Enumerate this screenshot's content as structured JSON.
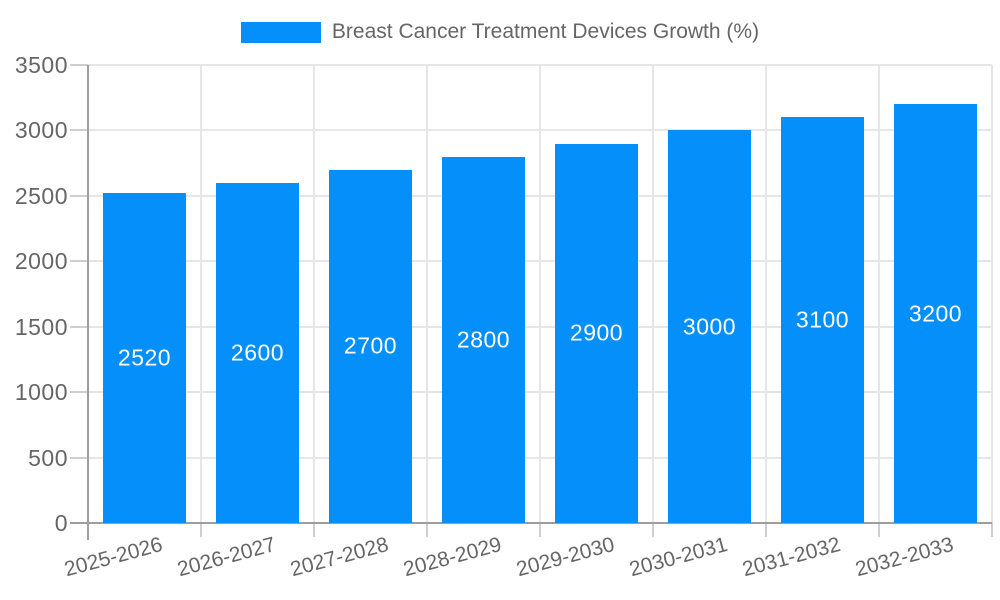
{
  "legend": {
    "label": "Breast Cancer Treatment Devices Growth (%)"
  },
  "chart_data": {
    "type": "bar",
    "title": "Breast Cancer Treatment Devices Growth (%)",
    "categories": [
      "2025-2026",
      "2026-2027",
      "2027-2028",
      "2028-2029",
      "2029-2030",
      "2030-2031",
      "2031-2032",
      "2032-2033"
    ],
    "values": [
      2520,
      2600,
      2700,
      2800,
      2900,
      3000,
      3100,
      3200
    ],
    "bar_labels": [
      "2520",
      "2600",
      "2700",
      "2800",
      "2900",
      "3000",
      "3100",
      "3200"
    ],
    "xlabel": "",
    "ylabel": "",
    "ylim": [
      0,
      3500
    ],
    "yticks": [
      0,
      500,
      1000,
      1500,
      2000,
      2500,
      3000,
      3500
    ],
    "grid": true,
    "legend_position": "top",
    "colors": {
      "bar": "#058FFB",
      "bar_label_text": "#ffffff",
      "tick_text": "#666666",
      "legend_text": "#666666",
      "gridline": "#e6e6e6",
      "axis_line": "#9e9e9e",
      "tick_mark": "#cfcfcf",
      "background": "#ffffff"
    }
  }
}
